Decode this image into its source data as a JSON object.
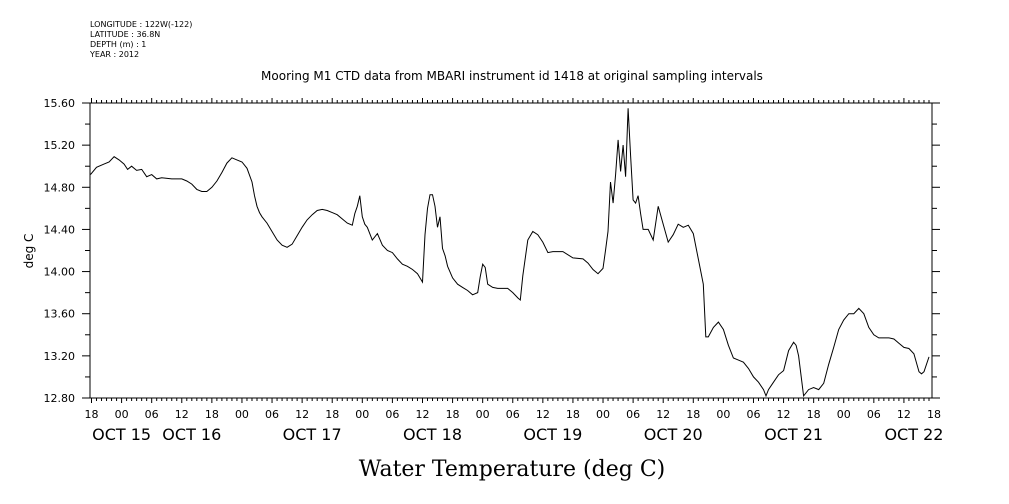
{
  "meta_lines": {
    "longitude": "LONGITUDE : 122W(-122)",
    "latitude": "LATITUDE : 36.8N",
    "depth": "DEPTH (m) : 1",
    "year": "YEAR : 2012"
  },
  "chart_data": {
    "type": "line",
    "title": "Mooring M1 CTD data from MBARI instrument id 1418 at original sampling intervals",
    "xlabel": "Water Temperature (deg C)",
    "ylabel": "deg C",
    "ylim": [
      12.8,
      15.6
    ],
    "yticks": [
      "12.80",
      "13.20",
      "13.60",
      "14.00",
      "14.40",
      "14.80",
      "15.20",
      "15.60"
    ],
    "x_hour_labels": [
      "18",
      "00",
      "06",
      "12",
      "18",
      "00",
      "06",
      "12",
      "18",
      "00",
      "06",
      "12",
      "18",
      "00",
      "06",
      "12",
      "18",
      "00",
      "06",
      "12",
      "18",
      "00",
      "06",
      "12",
      "18",
      "00",
      "06",
      "12",
      "18"
    ],
    "x_day_labels": [
      {
        "label": "OCT 15",
        "hour": 0
      },
      {
        "label": "OCT 16",
        "hour": 14
      },
      {
        "label": "OCT 17",
        "hour": 38
      },
      {
        "label": "OCT 18",
        "hour": 62
      },
      {
        "label": "OCT 19",
        "hour": 86
      },
      {
        "label": "OCT 20",
        "hour": 110
      },
      {
        "label": "OCT 21",
        "hour": 134
      },
      {
        "label": "OCT 22",
        "hour": 158
      }
    ],
    "xlim_hours": [
      -6.3,
      161.6
    ],
    "x_axis_note": "x values are hours relative to OCT 15 00:00",
    "series": [
      {
        "values": [
          [
            -6.2,
            14.92
          ],
          [
            -5,
            14.99
          ],
          [
            -3.5,
            15.02
          ],
          [
            -2.5,
            15.04
          ],
          [
            -1.5,
            15.09
          ],
          [
            -0.5,
            15.06
          ],
          [
            0.5,
            15.02
          ],
          [
            1.2,
            14.97
          ],
          [
            2,
            15.0
          ],
          [
            3,
            14.96
          ],
          [
            4,
            14.97
          ],
          [
            5,
            14.9
          ],
          [
            6,
            14.92
          ],
          [
            7,
            14.88
          ],
          [
            8,
            14.89
          ],
          [
            10,
            14.88
          ],
          [
            12,
            14.88
          ],
          [
            13,
            14.86
          ],
          [
            14,
            14.83
          ],
          [
            15,
            14.78
          ],
          [
            16,
            14.76
          ],
          [
            17,
            14.76
          ],
          [
            18,
            14.8
          ],
          [
            19,
            14.86
          ],
          [
            20,
            14.94
          ],
          [
            21,
            15.03
          ],
          [
            22,
            15.08
          ],
          [
            23,
            15.06
          ],
          [
            24,
            15.04
          ],
          [
            25,
            14.98
          ],
          [
            26,
            14.85
          ],
          [
            26.5,
            14.72
          ],
          [
            27,
            14.62
          ],
          [
            27.5,
            14.56
          ],
          [
            28,
            14.52
          ],
          [
            29,
            14.46
          ],
          [
            30,
            14.38
          ],
          [
            31,
            14.3
          ],
          [
            32,
            14.25
          ],
          [
            33,
            14.23
          ],
          [
            34,
            14.26
          ],
          [
            35,
            14.34
          ],
          [
            36,
            14.42
          ],
          [
            37,
            14.49
          ],
          [
            38,
            14.54
          ],
          [
            39,
            14.58
          ],
          [
            40,
            14.59
          ],
          [
            41,
            14.58
          ],
          [
            42,
            14.56
          ],
          [
            43,
            14.54
          ],
          [
            44,
            14.5
          ],
          [
            45,
            14.46
          ],
          [
            46,
            14.44
          ],
          [
            46.5,
            14.55
          ],
          [
            47,
            14.62
          ],
          [
            47.5,
            14.72
          ],
          [
            48,
            14.52
          ],
          [
            48.5,
            14.45
          ],
          [
            49,
            14.42
          ],
          [
            50,
            14.3
          ],
          [
            51,
            14.36
          ],
          [
            52,
            14.25
          ],
          [
            53,
            14.2
          ],
          [
            54,
            14.18
          ],
          [
            55,
            14.12
          ],
          [
            56,
            14.07
          ],
          [
            57,
            14.05
          ],
          [
            58,
            14.02
          ],
          [
            59,
            13.98
          ],
          [
            60,
            13.9
          ],
          [
            60.5,
            14.35
          ],
          [
            61,
            14.6
          ],
          [
            61.5,
            14.73
          ],
          [
            62,
            14.73
          ],
          [
            62.5,
            14.62
          ],
          [
            63,
            14.42
          ],
          [
            63.5,
            14.52
          ],
          [
            64,
            14.22
          ],
          [
            64.5,
            14.15
          ],
          [
            65,
            14.05
          ],
          [
            66,
            13.94
          ],
          [
            67,
            13.88
          ],
          [
            68,
            13.85
          ],
          [
            69,
            13.82
          ],
          [
            70,
            13.78
          ],
          [
            71,
            13.8
          ],
          [
            71.5,
            13.95
          ],
          [
            72,
            14.07
          ],
          [
            72.5,
            14.04
          ],
          [
            73,
            13.88
          ],
          [
            74,
            13.85
          ],
          [
            75,
            13.84
          ],
          [
            76,
            13.84
          ],
          [
            77,
            13.84
          ],
          [
            78,
            13.8
          ],
          [
            79,
            13.75
          ],
          [
            79.5,
            13.73
          ],
          [
            80,
            13.96
          ],
          [
            81,
            14.3
          ],
          [
            82,
            14.38
          ],
          [
            83,
            14.35
          ],
          [
            84,
            14.28
          ],
          [
            85,
            14.18
          ],
          [
            86,
            14.19
          ],
          [
            88,
            14.19
          ],
          [
            90,
            14.13
          ],
          [
            92,
            14.12
          ],
          [
            93,
            14.08
          ],
          [
            94,
            14.02
          ],
          [
            95,
            13.98
          ],
          [
            96,
            14.03
          ],
          [
            96.5,
            14.2
          ],
          [
            97,
            14.38
          ],
          [
            97.5,
            14.85
          ],
          [
            98,
            14.65
          ],
          [
            98.5,
            14.92
          ],
          [
            99,
            15.25
          ],
          [
            99.5,
            14.95
          ],
          [
            100,
            15.2
          ],
          [
            100.5,
            14.9
          ],
          [
            101,
            15.55
          ],
          [
            101.5,
            15.1
          ],
          [
            102,
            14.68
          ],
          [
            102.5,
            14.65
          ],
          [
            103,
            14.72
          ],
          [
            103.5,
            14.55
          ],
          [
            104,
            14.4
          ],
          [
            105,
            14.4
          ],
          [
            106,
            14.3
          ],
          [
            107,
            14.62
          ],
          [
            108,
            14.45
          ],
          [
            109,
            14.28
          ],
          [
            110,
            14.35
          ],
          [
            111,
            14.45
          ],
          [
            112,
            14.42
          ],
          [
            113,
            14.44
          ],
          [
            114,
            14.36
          ],
          [
            115,
            14.12
          ],
          [
            116,
            13.88
          ],
          [
            116.5,
            13.38
          ],
          [
            117,
            13.38
          ],
          [
            118,
            13.47
          ],
          [
            119,
            13.52
          ],
          [
            120,
            13.45
          ],
          [
            121,
            13.3
          ],
          [
            122,
            13.18
          ],
          [
            123,
            13.16
          ],
          [
            124,
            13.14
          ],
          [
            125,
            13.08
          ],
          [
            126,
            13.0
          ],
          [
            127,
            12.95
          ],
          [
            128,
            12.88
          ],
          [
            128.5,
            12.82
          ],
          [
            129,
            12.88
          ],
          [
            130,
            12.95
          ],
          [
            131,
            13.02
          ],
          [
            132,
            13.06
          ],
          [
            133,
            13.25
          ],
          [
            134,
            13.33
          ],
          [
            134.5,
            13.3
          ],
          [
            135,
            13.2
          ],
          [
            136,
            12.82
          ],
          [
            137,
            12.88
          ],
          [
            138,
            12.9
          ],
          [
            139,
            12.88
          ],
          [
            140,
            12.94
          ],
          [
            141,
            13.12
          ],
          [
            142,
            13.28
          ],
          [
            143,
            13.45
          ],
          [
            144,
            13.54
          ],
          [
            145,
            13.6
          ],
          [
            146,
            13.6
          ],
          [
            147,
            13.65
          ],
          [
            148,
            13.6
          ],
          [
            149,
            13.47
          ],
          [
            150,
            13.4
          ],
          [
            151,
            13.37
          ],
          [
            153,
            13.37
          ],
          [
            154,
            13.36
          ],
          [
            155,
            13.32
          ],
          [
            156,
            13.28
          ],
          [
            157,
            13.27
          ],
          [
            158,
            13.22
          ],
          [
            159,
            13.05
          ],
          [
            159.5,
            13.03
          ],
          [
            160,
            13.05
          ],
          [
            161,
            13.19
          ]
        ]
      }
    ]
  }
}
